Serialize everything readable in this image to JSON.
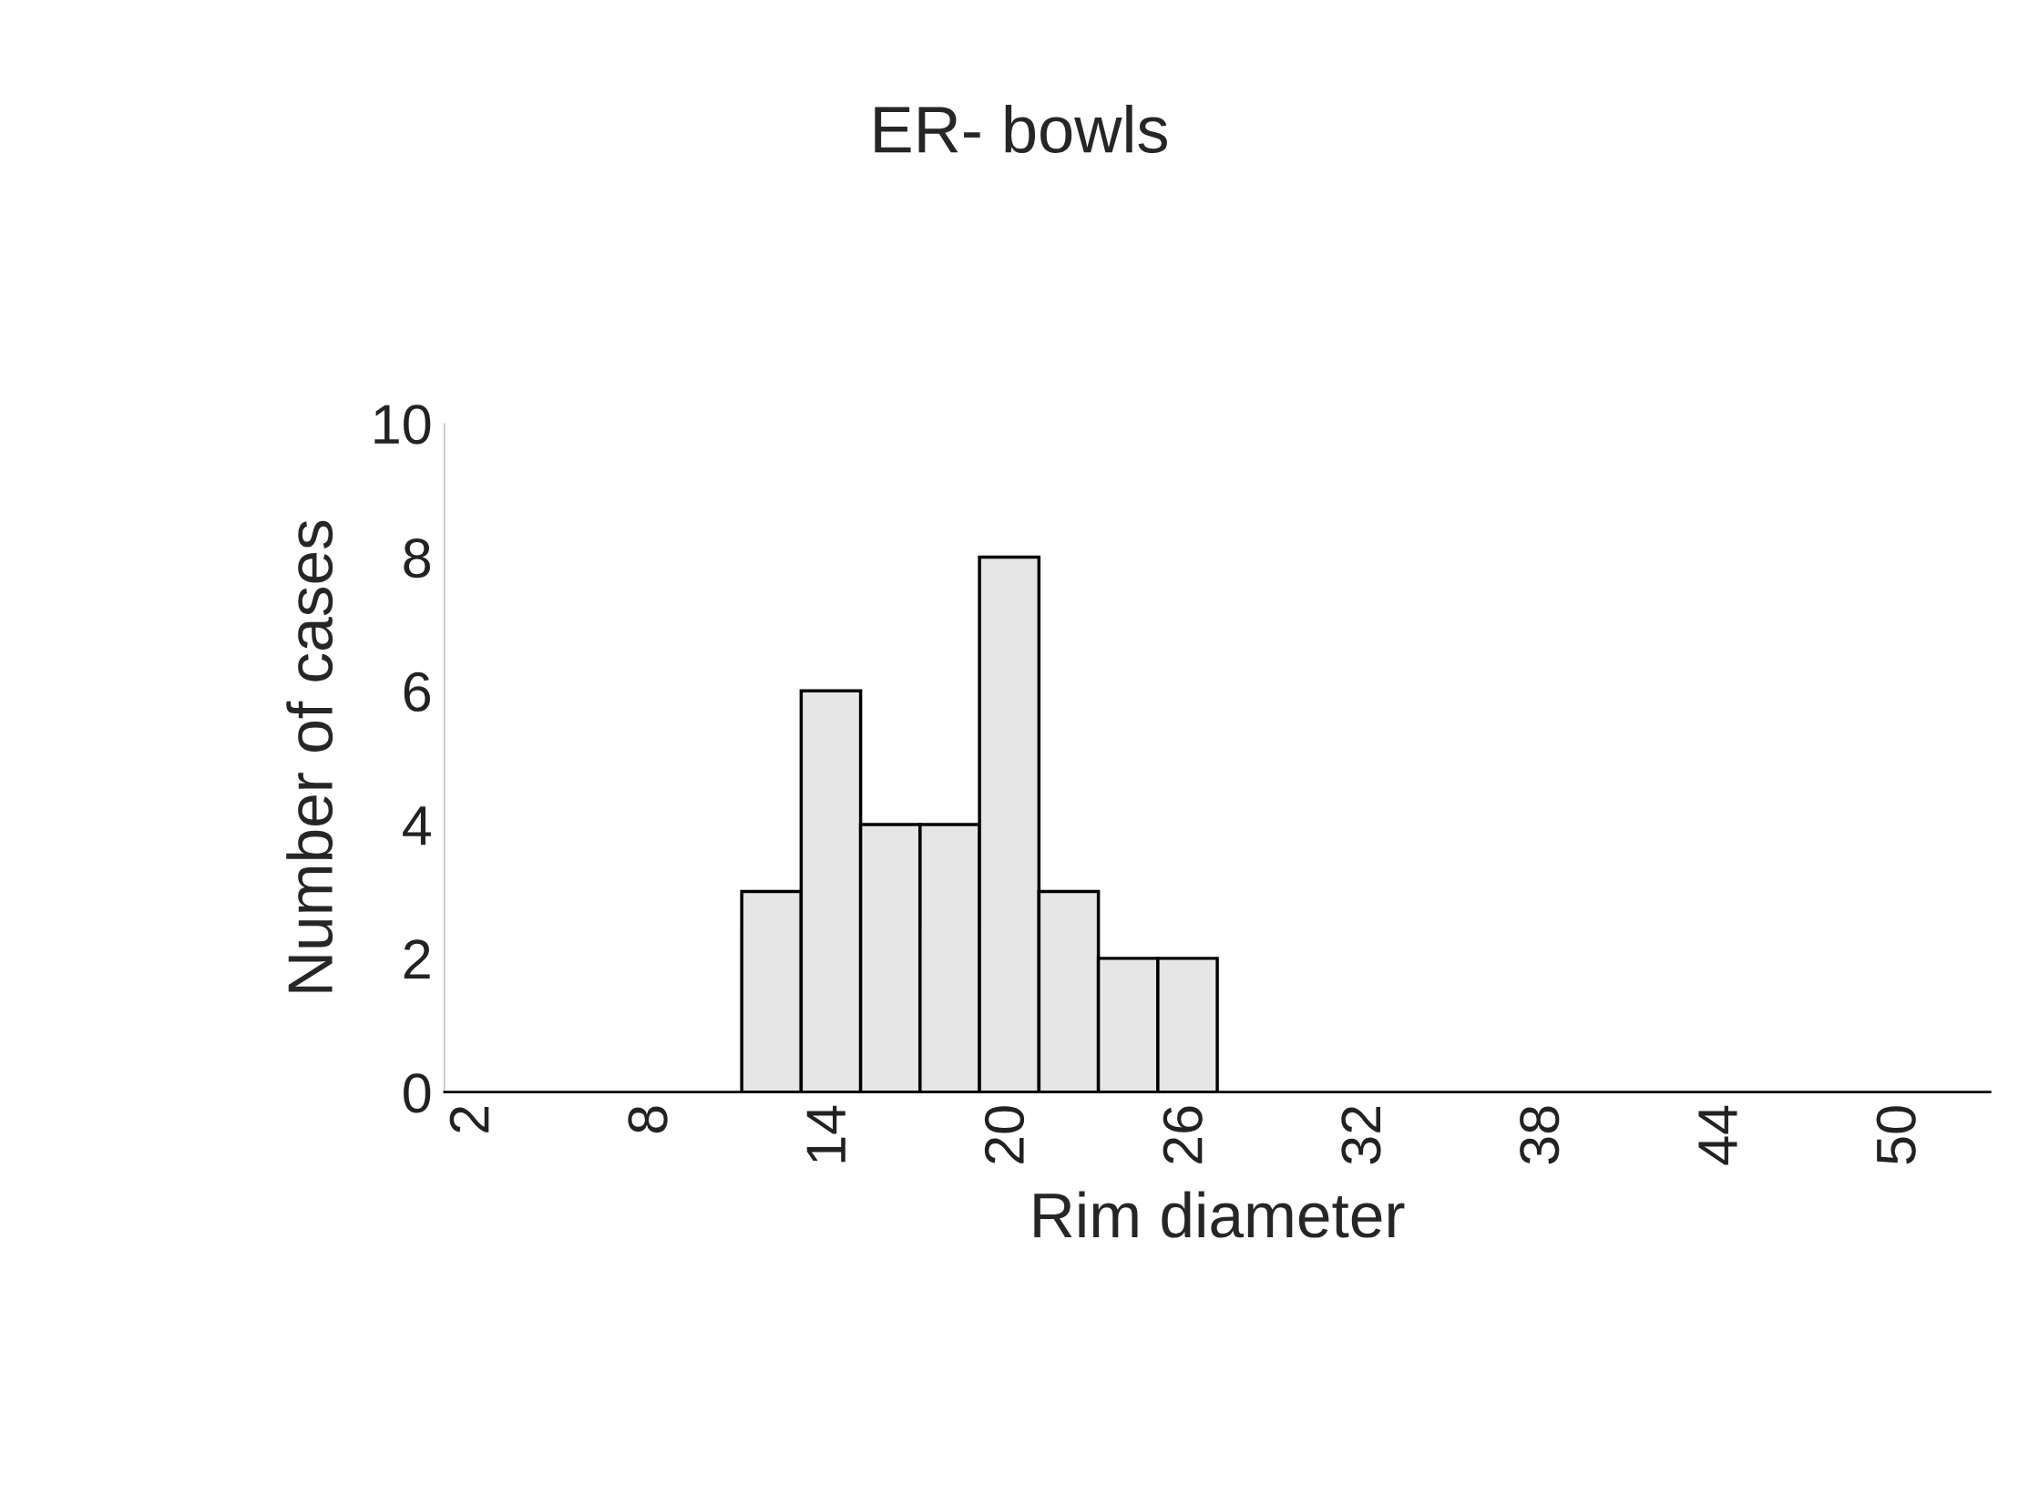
{
  "chart_data": {
    "type": "bar",
    "title": "ER- bowls",
    "xlabel": "Rim diameter",
    "ylabel": "Number of cases",
    "categories": [
      "2",
      null,
      null,
      "8",
      null,
      null,
      "14",
      null,
      null,
      "20",
      null,
      null,
      "26",
      null,
      null,
      "32",
      null,
      null,
      "38",
      null,
      null,
      "44",
      null,
      null,
      "50",
      null
    ],
    "values": [
      0,
      0,
      0,
      0,
      0,
      3,
      6,
      4,
      4,
      8,
      3,
      2,
      2,
      0,
      0,
      0,
      0,
      0,
      0,
      0,
      0,
      0,
      0,
      0,
      0,
      0
    ],
    "color": "#e6e6e6",
    "ylim": [
      0,
      10
    ],
    "yticks": [
      0,
      2,
      4,
      6,
      8,
      10
    ],
    "grid": false,
    "legend": false
  }
}
